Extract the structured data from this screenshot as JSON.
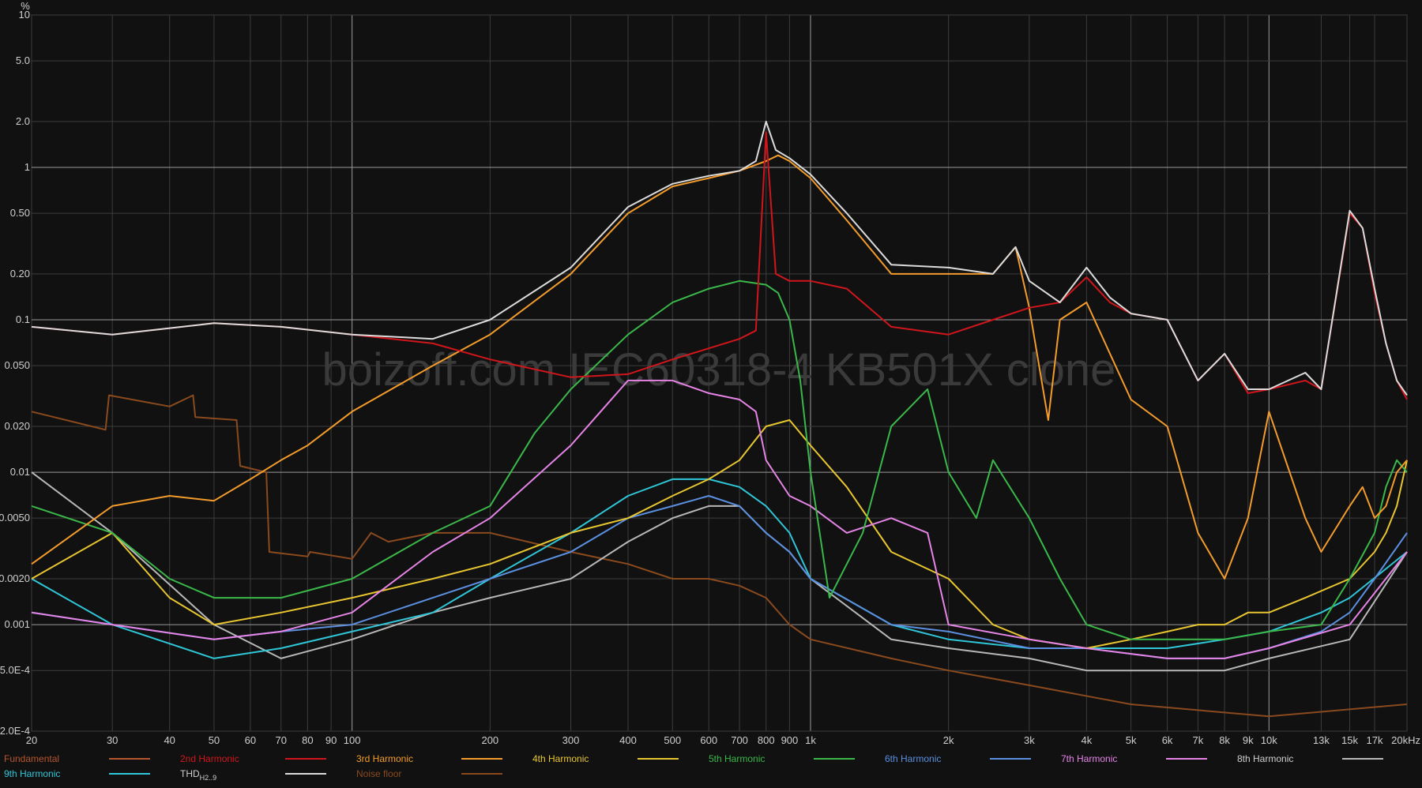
{
  "chart_data": {
    "type": "line",
    "title": "",
    "ylabel": "%",
    "xlabel_unit": "kHz",
    "x_scale": "log",
    "y_scale": "log",
    "xlim": [
      20,
      20000
    ],
    "ylim": [
      0.0002,
      10
    ],
    "watermark": "boizoff.com IEC60318-4 KB501X clone",
    "grid": true,
    "x_ticks": [
      {
        "v": 20,
        "label": "20"
      },
      {
        "v": 30,
        "label": "30"
      },
      {
        "v": 40,
        "label": "40"
      },
      {
        "v": 50,
        "label": "50"
      },
      {
        "v": 60,
        "label": "60"
      },
      {
        "v": 70,
        "label": "70"
      },
      {
        "v": 80,
        "label": "80"
      },
      {
        "v": 90,
        "label": "90"
      },
      {
        "v": 100,
        "label": "100"
      },
      {
        "v": 200,
        "label": "200"
      },
      {
        "v": 300,
        "label": "300"
      },
      {
        "v": 400,
        "label": "400"
      },
      {
        "v": 500,
        "label": "500"
      },
      {
        "v": 600,
        "label": "600"
      },
      {
        "v": 700,
        "label": "700"
      },
      {
        "v": 800,
        "label": "800"
      },
      {
        "v": 900,
        "label": "900"
      },
      {
        "v": 1000,
        "label": "1k"
      },
      {
        "v": 2000,
        "label": "2k"
      },
      {
        "v": 3000,
        "label": "3k"
      },
      {
        "v": 4000,
        "label": "4k"
      },
      {
        "v": 5000,
        "label": "5k"
      },
      {
        "v": 6000,
        "label": "6k"
      },
      {
        "v": 7000,
        "label": "7k"
      },
      {
        "v": 8000,
        "label": "8k"
      },
      {
        "v": 9000,
        "label": "9k"
      },
      {
        "v": 10000,
        "label": "10k"
      },
      {
        "v": 13000,
        "label": "13k"
      },
      {
        "v": 15000,
        "label": "15k"
      },
      {
        "v": 17000,
        "label": "17k"
      },
      {
        "v": 20000,
        "label": "20kHz"
      }
    ],
    "y_ticks": [
      {
        "v": 10,
        "label": "10"
      },
      {
        "v": 5,
        "label": "5.0"
      },
      {
        "v": 2,
        "label": "2.0"
      },
      {
        "v": 1,
        "label": "1"
      },
      {
        "v": 0.5,
        "label": "0.50"
      },
      {
        "v": 0.2,
        "label": "0.20"
      },
      {
        "v": 0.1,
        "label": "0.1"
      },
      {
        "v": 0.05,
        "label": "0.050"
      },
      {
        "v": 0.02,
        "label": "0.020"
      },
      {
        "v": 0.01,
        "label": "0.01"
      },
      {
        "v": 0.005,
        "label": "0.0050"
      },
      {
        "v": 0.002,
        "label": "0.0020"
      },
      {
        "v": 0.001,
        "label": "0.001"
      },
      {
        "v": 0.0005,
        "label": "5.0E-4"
      },
      {
        "v": 0.0002,
        "label": "2.0E-4"
      }
    ],
    "series": [
      {
        "name": "Fundamental",
        "label": "Fundamental",
        "color": "#b5562e",
        "x": [],
        "y": []
      },
      {
        "name": "2nd Harmonic",
        "label": "2nd Harmonic",
        "color": "#d0161c",
        "x": [
          20,
          30,
          50,
          70,
          100,
          150,
          200,
          300,
          400,
          500,
          600,
          700,
          760,
          800,
          840,
          900,
          1000,
          1200,
          1500,
          2000,
          2500,
          3000,
          3500,
          4000,
          4500,
          5000,
          6000,
          7000,
          8000,
          9000,
          10000,
          12000,
          13000,
          15000,
          16000,
          17000,
          18000,
          19000,
          20000
        ],
        "y": [
          0.09,
          0.08,
          0.095,
          0.09,
          0.08,
          0.07,
          0.055,
          0.042,
          0.044,
          0.055,
          0.065,
          0.075,
          0.085,
          1.7,
          0.2,
          0.18,
          0.18,
          0.16,
          0.09,
          0.08,
          0.1,
          0.12,
          0.13,
          0.19,
          0.13,
          0.11,
          0.1,
          0.04,
          0.06,
          0.033,
          0.035,
          0.04,
          0.035,
          0.5,
          0.4,
          0.15,
          0.07,
          0.04,
          0.03
        ]
      },
      {
        "name": "3rd Harmonic",
        "label": "3rd Harmonic",
        "color": "#f39c2b",
        "x": [
          20,
          30,
          40,
          50,
          60,
          70,
          80,
          100,
          150,
          200,
          300,
          400,
          500,
          600,
          700,
          800,
          850,
          900,
          1000,
          1200,
          1500,
          2000,
          2500,
          2800,
          3000,
          3300,
          3500,
          4000,
          4500,
          5000,
          6000,
          7000,
          8000,
          9000,
          10000,
          12000,
          13000,
          15000,
          16000,
          17000,
          18000,
          19000,
          20000
        ],
        "y": [
          0.0025,
          0.006,
          0.007,
          0.0065,
          0.009,
          0.012,
          0.015,
          0.025,
          0.05,
          0.08,
          0.2,
          0.5,
          0.75,
          0.85,
          0.95,
          1.1,
          1.2,
          1.1,
          0.85,
          0.45,
          0.2,
          0.2,
          0.2,
          0.3,
          0.12,
          0.022,
          0.1,
          0.13,
          0.06,
          0.03,
          0.02,
          0.004,
          0.002,
          0.005,
          0.025,
          0.005,
          0.003,
          0.006,
          0.008,
          0.005,
          0.006,
          0.01,
          0.012
        ]
      },
      {
        "name": "4th Harmonic",
        "label": "4th Harmonic",
        "color": "#e8c630",
        "x": [
          20,
          30,
          40,
          50,
          70,
          100,
          150,
          200,
          300,
          400,
          500,
          600,
          700,
          800,
          900,
          1000,
          1200,
          1500,
          2000,
          2500,
          3000,
          4000,
          5000,
          6000,
          7000,
          8000,
          9000,
          10000,
          12000,
          15000,
          17000,
          18000,
          19000,
          20000
        ],
        "y": [
          0.002,
          0.004,
          0.0015,
          0.001,
          0.0012,
          0.0015,
          0.002,
          0.0025,
          0.004,
          0.005,
          0.007,
          0.009,
          0.012,
          0.02,
          0.022,
          0.015,
          0.008,
          0.003,
          0.002,
          0.001,
          0.0008,
          0.0007,
          0.0008,
          0.0009,
          0.001,
          0.001,
          0.0012,
          0.0012,
          0.0015,
          0.002,
          0.003,
          0.004,
          0.006,
          0.012
        ]
      },
      {
        "name": "5th Harmonic",
        "label": "5th Harmonic",
        "color": "#3ab84a",
        "x": [
          20,
          30,
          40,
          50,
          70,
          100,
          150,
          200,
          250,
          300,
          400,
          500,
          600,
          700,
          800,
          850,
          900,
          950,
          1000,
          1100,
          1300,
          1500,
          1800,
          2000,
          2300,
          2500,
          3000,
          3500,
          4000,
          5000,
          6000,
          8000,
          10000,
          13000,
          15000,
          17000,
          18000,
          19000,
          20000
        ],
        "y": [
          0.006,
          0.004,
          0.002,
          0.0015,
          0.0015,
          0.002,
          0.004,
          0.006,
          0.018,
          0.035,
          0.08,
          0.13,
          0.16,
          0.18,
          0.17,
          0.15,
          0.1,
          0.04,
          0.01,
          0.0015,
          0.004,
          0.02,
          0.035,
          0.01,
          0.005,
          0.012,
          0.005,
          0.002,
          0.001,
          0.0008,
          0.0008,
          0.0008,
          0.0009,
          0.001,
          0.002,
          0.004,
          0.008,
          0.012,
          0.01
        ]
      },
      {
        "name": "6th Harmonic",
        "label": "6th Harmonic",
        "color": "#5b8fe0",
        "x": [
          20,
          30,
          50,
          70,
          100,
          150,
          200,
          300,
          400,
          500,
          600,
          700,
          800,
          900,
          1000,
          1500,
          2000,
          3000,
          4000,
          6000,
          8000,
          10000,
          13000,
          15000,
          17000,
          20000
        ],
        "y": [
          0.0012,
          0.001,
          0.0008,
          0.0009,
          0.001,
          0.0015,
          0.002,
          0.003,
          0.005,
          0.006,
          0.007,
          0.006,
          0.004,
          0.003,
          0.002,
          0.001,
          0.0009,
          0.0007,
          0.0007,
          0.0006,
          0.0006,
          0.0007,
          0.0009,
          0.0012,
          0.002,
          0.004
        ]
      },
      {
        "name": "7th Harmonic",
        "label": "7th Harmonic",
        "color": "#e584e6",
        "x": [
          20,
          30,
          50,
          70,
          100,
          150,
          200,
          300,
          400,
          500,
          600,
          700,
          760,
          800,
          900,
          1000,
          1200,
          1500,
          1800,
          2000,
          3000,
          4000,
          6000,
          8000,
          10000,
          15000,
          20000
        ],
        "y": [
          0.0012,
          0.001,
          0.0008,
          0.0009,
          0.0012,
          0.003,
          0.005,
          0.015,
          0.04,
          0.04,
          0.033,
          0.03,
          0.025,
          0.012,
          0.007,
          0.006,
          0.004,
          0.005,
          0.004,
          0.001,
          0.0008,
          0.0007,
          0.0006,
          0.0006,
          0.0007,
          0.001,
          0.003
        ]
      },
      {
        "name": "8th Harmonic",
        "label": "8th Harmonic",
        "color": "#b8b8b8",
        "x": [
          20,
          30,
          50,
          70,
          100,
          150,
          200,
          300,
          400,
          500,
          600,
          700,
          800,
          900,
          1000,
          1500,
          2000,
          3000,
          4000,
          6000,
          8000,
          10000,
          15000,
          20000
        ],
        "y": [
          0.01,
          0.004,
          0.001,
          0.0006,
          0.0008,
          0.0012,
          0.0015,
          0.002,
          0.0035,
          0.005,
          0.006,
          0.006,
          0.004,
          0.003,
          0.002,
          0.0008,
          0.0007,
          0.0006,
          0.0005,
          0.0005,
          0.0005,
          0.0006,
          0.0008,
          0.003
        ]
      },
      {
        "name": "9th Harmonic",
        "label": "9th Harmonic",
        "color": "#2fc6d8",
        "x": [
          20,
          30,
          50,
          70,
          100,
          150,
          200,
          300,
          400,
          500,
          600,
          700,
          800,
          900,
          1000,
          1500,
          2000,
          3000,
          4000,
          6000,
          8000,
          10000,
          13000,
          15000,
          20000
        ],
        "y": [
          0.002,
          0.001,
          0.0006,
          0.0007,
          0.0009,
          0.0012,
          0.002,
          0.004,
          0.007,
          0.009,
          0.009,
          0.008,
          0.006,
          0.004,
          0.002,
          0.001,
          0.0008,
          0.0007,
          0.0007,
          0.0007,
          0.0008,
          0.0009,
          0.0012,
          0.0015,
          0.003
        ]
      },
      {
        "name": "THD",
        "label": "THD",
        "label_sub": "H2..9",
        "color": "#dcdcdc",
        "x": [
          20,
          30,
          50,
          70,
          100,
          150,
          200,
          300,
          400,
          500,
          600,
          700,
          760,
          800,
          840,
          900,
          1000,
          1200,
          1500,
          2000,
          2500,
          2800,
          3000,
          3500,
          4000,
          4500,
          5000,
          6000,
          7000,
          8000,
          9000,
          10000,
          12000,
          13000,
          15000,
          16000,
          17000,
          18000,
          19000,
          20000
        ],
        "y": [
          0.09,
          0.08,
          0.095,
          0.09,
          0.08,
          0.075,
          0.1,
          0.22,
          0.55,
          0.78,
          0.88,
          0.95,
          1.1,
          2.0,
          1.3,
          1.15,
          0.9,
          0.5,
          0.23,
          0.22,
          0.2,
          0.3,
          0.18,
          0.13,
          0.22,
          0.14,
          0.11,
          0.1,
          0.04,
          0.06,
          0.035,
          0.035,
          0.045,
          0.035,
          0.52,
          0.4,
          0.16,
          0.07,
          0.04,
          0.032
        ]
      },
      {
        "name": "Noise floor",
        "label": "Noise floor",
        "color": "#8a4a1e",
        "x": [
          20,
          29,
          29.5,
          40,
          45,
          45.5,
          56,
          57,
          65,
          66,
          80,
          81,
          100,
          110,
          120,
          150,
          200,
          300,
          400,
          500,
          600,
          700,
          800,
          900,
          1000,
          1500,
          2000,
          3000,
          5000,
          10000,
          20000
        ],
        "y": [
          0.025,
          0.019,
          0.032,
          0.027,
          0.032,
          0.023,
          0.022,
          0.011,
          0.01,
          0.003,
          0.0028,
          0.003,
          0.0027,
          0.004,
          0.0035,
          0.004,
          0.004,
          0.003,
          0.0025,
          0.002,
          0.002,
          0.0018,
          0.0015,
          0.001,
          0.0008,
          0.0006,
          0.0005,
          0.0004,
          0.0003,
          0.00025,
          0.0003
        ]
      }
    ]
  }
}
